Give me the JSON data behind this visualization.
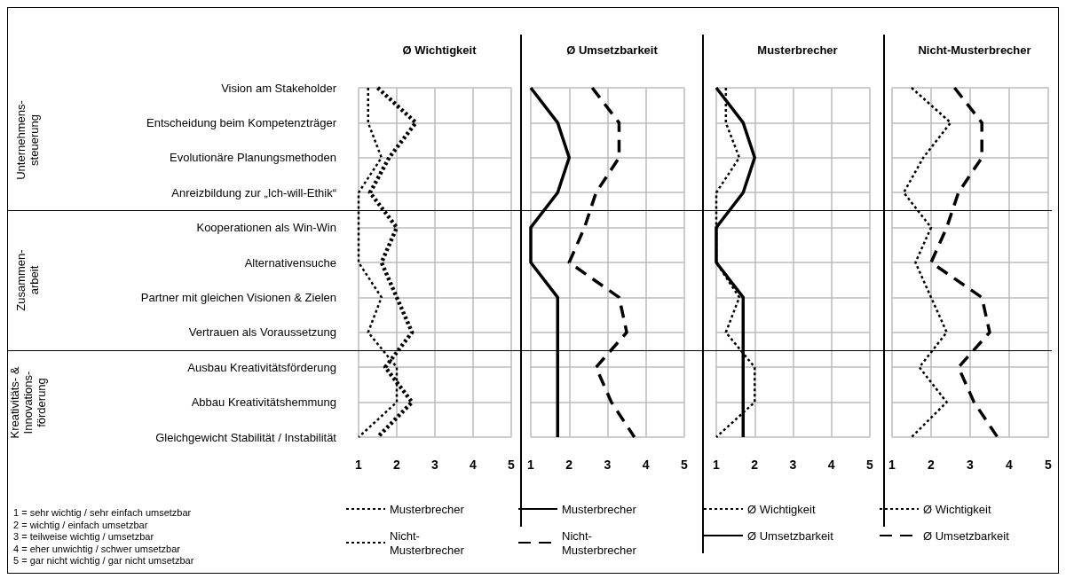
{
  "chart_data": [
    {
      "type": "line",
      "title": "Ø Wichtigkeit",
      "orientation": "horizontal",
      "categories": [
        "Vision am Stakeholder",
        "Entscheidung beim Kompetenzträger",
        "Evolutionäre Planungsmethoden",
        "Anreizbildung zur „Ich-will-Ethik“",
        "Kooperationen als Win-Win",
        "Alternativensuche",
        "Partner mit gleichen Visionen & Zielen",
        "Vertrauen als Voraussetzung",
        "Ausbau Kreativitätsförderung",
        "Abbau Kreativitätshemmung",
        "Gleichgewicht Stabilität / Instabilität"
      ],
      "xlim": [
        1,
        5
      ],
      "xticks": [
        1,
        2,
        3,
        4,
        5
      ],
      "grid": true,
      "legend": "bottom",
      "annotations": [
        "Unternehmens-steuerung",
        "Zusammen-arbeit",
        "Kreativitäts- & Innovations-förderung",
        "1 = sehr wichtig / sehr einfach umsetzbar",
        "2 = wichtig / einfach umsetzbar",
        "3 = teilweise wichtig / umsetzbar",
        "4 = eher unwichtig / schwer umsetzbar",
        "5 = gar nicht wichtig / gar nicht umsetzbar"
      ],
      "series": [
        {
          "name": "Musterbrecher",
          "color": "#000000",
          "line_style": "dotted",
          "values": [
            1.25,
            1.25,
            1.6,
            1,
            1,
            1,
            1.6,
            1.25,
            2,
            2,
            1
          ]
        },
        {
          "name": "Nicht-Musterbrecher",
          "color": "#000000",
          "line_style": "dotted",
          "values": [
            1.5,
            2.5,
            1.8,
            1.3,
            2,
            1.6,
            2,
            2.4,
            1.7,
            2.4,
            1.5
          ]
        }
      ]
    },
    {
      "type": "line",
      "title": "Ø Umsetzbarkeit",
      "orientation": "horizontal",
      "xlim": [
        1,
        5
      ],
      "xticks": [
        1,
        2,
        3,
        4,
        5
      ],
      "grid": true,
      "legend": "bottom",
      "tick_labels": "x",
      "series": [
        {
          "name": "Musterbrecher",
          "color": "#000000",
          "line_style": "solid",
          "values": [
            1,
            1.7,
            2,
            1.7,
            1,
            1,
            1.7,
            1.7,
            1.7,
            1.7,
            1.7
          ]
        },
        {
          "name": "Nicht-Musterbrecher",
          "color": "#000000",
          "line_style": "dashed",
          "values": [
            2.6,
            3.3,
            3.3,
            2.7,
            2.4,
            2,
            3.3,
            3.5,
            2.7,
            3.1,
            3.7
          ]
        }
      ]
    },
    {
      "type": "line",
      "title": "Musterbrecher",
      "orientation": "horizontal",
      "xlim": [
        1,
        5
      ],
      "xticks": [
        1,
        2,
        3,
        4,
        5
      ],
      "grid": true,
      "legend": "bottom",
      "tick_labels": "x",
      "series": [
        {
          "name": "Ø Wichtigkeit",
          "color": "#000000",
          "line_style": "dotted",
          "values": [
            1.25,
            1.25,
            1.6,
            1,
            1,
            1,
            1.6,
            1.25,
            2,
            2,
            1
          ]
        },
        {
          "name": "Ø Umsetzbarkeit",
          "color": "#000000",
          "line_style": "solid",
          "values": [
            1,
            1.7,
            2,
            1.7,
            1,
            1,
            1.7,
            1.7,
            1.7,
            1.7,
            1.7
          ]
        }
      ]
    },
    {
      "type": "line",
      "title": "Nicht-Musterbrecher",
      "orientation": "horizontal",
      "xlim": [
        1,
        5
      ],
      "xticks": [
        1,
        2,
        3,
        4,
        5
      ],
      "grid": true,
      "legend": "bottom",
      "tick_labels": "x",
      "series": [
        {
          "name": "Ø Wichtigkeit",
          "color": "#000000",
          "line_style": "dotted",
          "values": [
            1.5,
            2.5,
            1.8,
            1.3,
            2,
            1.6,
            2,
            2.4,
            1.7,
            2.4,
            1.5
          ]
        },
        {
          "name": "Ø Umsetzbarkeit",
          "color": "#000000",
          "line_style": "dashed",
          "values": [
            2.6,
            3.3,
            3.3,
            2.7,
            2.4,
            2,
            3.3,
            3.5,
            2.7,
            3.1,
            3.7
          ]
        }
      ]
    }
  ]
}
